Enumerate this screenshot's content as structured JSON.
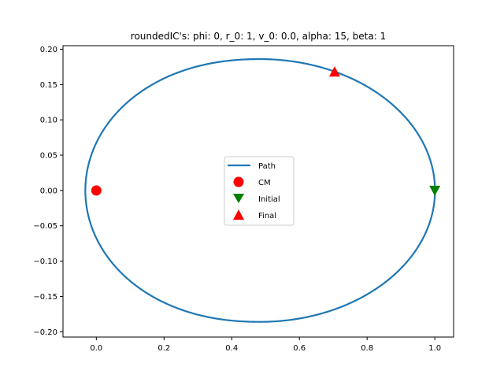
{
  "chart_data": {
    "type": "line",
    "title": "roundedIC's: phi: 0, r_0: 1, v_0: 0.0, alpha: 15, beta: 1",
    "xlabel": "",
    "ylabel": "",
    "xlim": [
      -0.0985,
      1.0555
    ],
    "ylim": [
      -0.2075,
      0.205
    ],
    "x_ticks": [
      0.0,
      0.2,
      0.4,
      0.6,
      0.8,
      1.0
    ],
    "x_tick_labels": [
      "0.0",
      "0.2",
      "0.4",
      "0.6",
      "0.8",
      "1.0"
    ],
    "y_ticks": [
      -0.2,
      -0.15,
      -0.1,
      -0.05,
      0.0,
      0.05,
      0.1,
      0.15,
      0.2
    ],
    "y_tick_labels": [
      "−0.20",
      "−0.15",
      "−0.10",
      "−0.05",
      "0.00",
      "0.05",
      "0.10",
      "0.15",
      "0.20"
    ],
    "grid": false,
    "legend_position": "center",
    "series": [
      {
        "name": "Path",
        "kind": "ellipse-path",
        "color": "#1f77b4",
        "center_x": 0.484,
        "center_y": 0.0,
        "semi_axis_x": 0.5165,
        "semi_axis_y": 0.186,
        "points_x_range": [
          -0.033,
          1.0
        ]
      },
      {
        "name": "CM",
        "marker": "circle",
        "color": "#ff0000",
        "x": [
          0.0
        ],
        "y": [
          0.0
        ]
      },
      {
        "name": "Initial",
        "marker": "triangle-down",
        "color": "#008000",
        "x": [
          1.0
        ],
        "y": [
          0.0
        ]
      },
      {
        "name": "Final",
        "marker": "triangle-up",
        "color": "#ff0000",
        "x": [
          0.704
        ],
        "y": [
          0.168
        ]
      }
    ]
  }
}
